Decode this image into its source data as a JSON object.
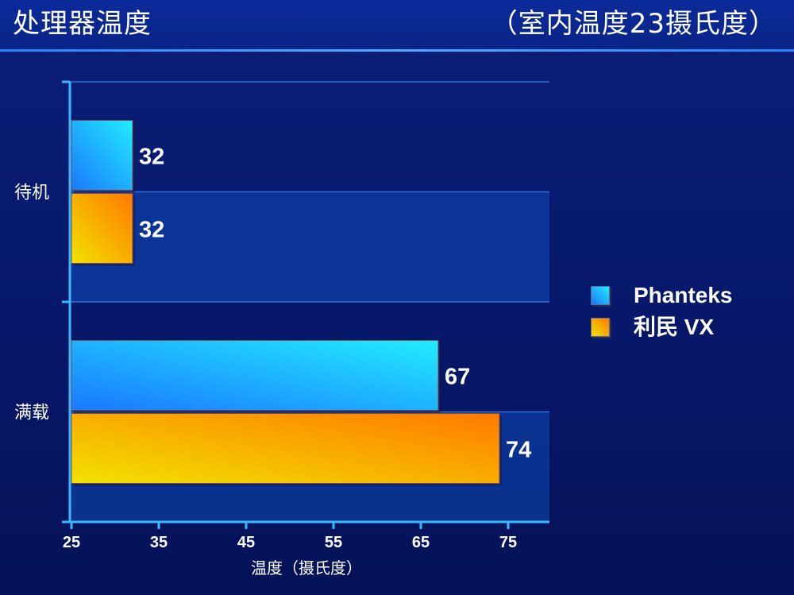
{
  "header": {
    "title": "处理器温度",
    "subtitle": "（室内温度23摄氏度）"
  },
  "chart_data": {
    "type": "bar",
    "orientation": "horizontal",
    "categories": [
      "待机",
      "满载"
    ],
    "series": [
      {
        "name": "Phanteks",
        "values": [
          32,
          67
        ]
      },
      {
        "name": "利民 VX",
        "values": [
          32,
          74
        ]
      }
    ],
    "data_labels": [
      [
        "32",
        "67"
      ],
      [
        "32",
        "74"
      ]
    ],
    "x_ticks": [
      "25",
      "35",
      "45",
      "55",
      "65",
      "75"
    ],
    "xlabel": "温度（摄氏度）",
    "xlim": [
      25,
      80
    ],
    "grid": true,
    "legend_position": "right",
    "colors": {
      "series_1_light": "#22ecff",
      "series_1_dark": "#1a78ff",
      "series_2_light": "#f2e200",
      "series_2_dark": "#ff7a00",
      "axis": "#39b8ff",
      "band": "#0c4bb8"
    }
  }
}
